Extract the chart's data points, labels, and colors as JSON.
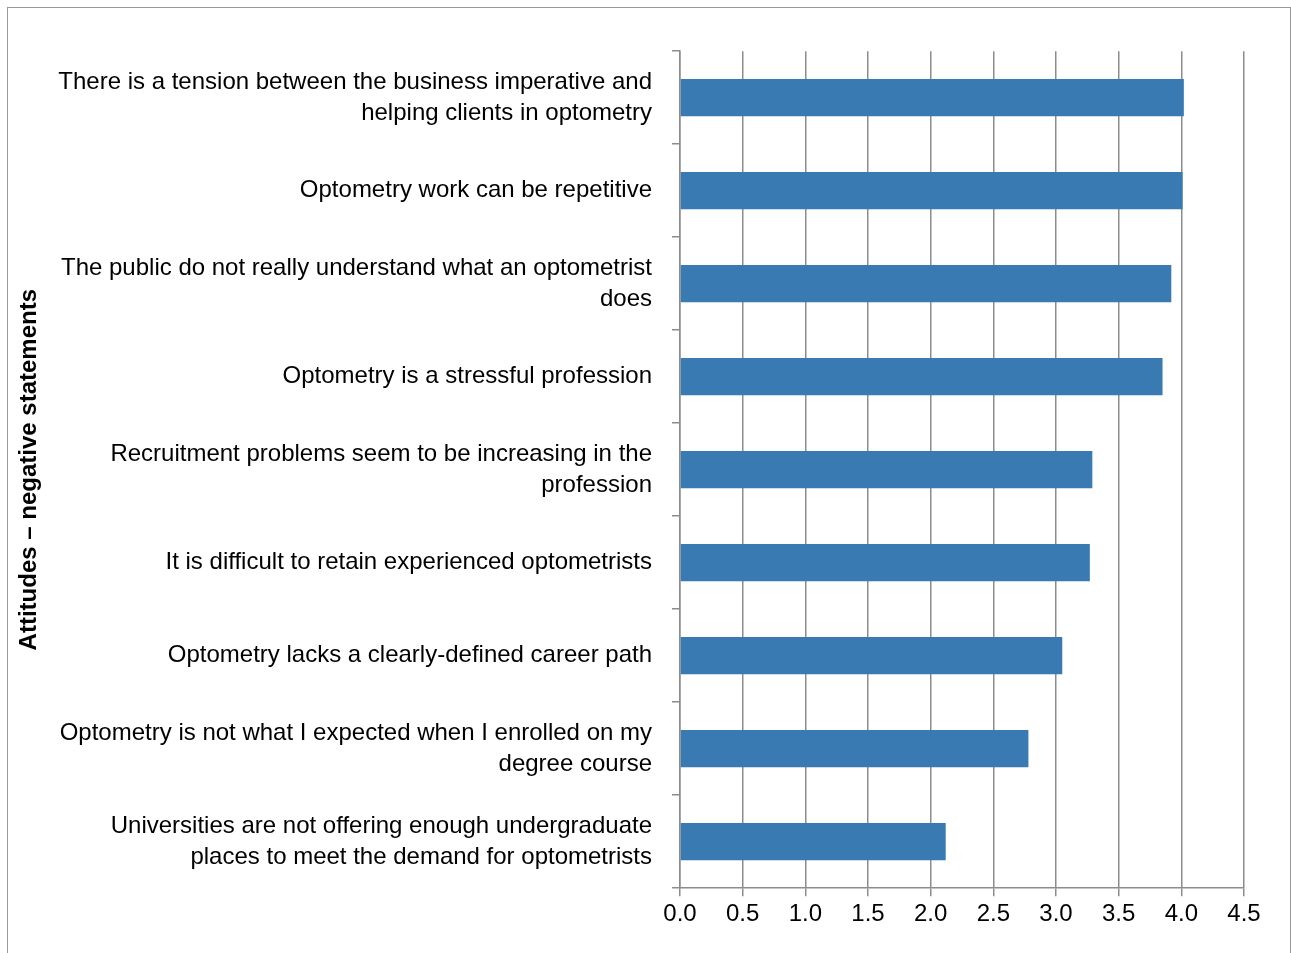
{
  "chart_data": {
    "type": "bar",
    "orientation": "horizontal",
    "ylabel": "Attitudes – negative statements",
    "categories": [
      "There is a tension between the business imperative and helping clients in optometry",
      "Optometry work can be repetitive",
      "The public do not really understand what an optometrist does",
      "Optometry is a stressful profession",
      "Recruitment problems seem to be increasing in the profession",
      "It is difficult to retain experienced optometrists",
      "Optometry lacks a clearly-defined career path",
      "Optometry is not what I expected when I enrolled on my degree course",
      "Universities are not offering enough undergraduate places to meet the demand for optometrists"
    ],
    "values": [
      4.02,
      4.01,
      3.92,
      3.85,
      3.29,
      3.27,
      3.05,
      2.78,
      2.12
    ],
    "color": "#3a7ab3",
    "xlim": [
      0,
      4.5
    ],
    "xticks": [
      {
        "value": 0,
        "label": "0.0"
      },
      {
        "value": 0.5,
        "label": "0.5"
      },
      {
        "value": 1,
        "label": "1.0"
      },
      {
        "value": 1.5,
        "label": "1.5"
      },
      {
        "value": 2,
        "label": "2.0"
      },
      {
        "value": 2.5,
        "label": "2.5"
      },
      {
        "value": 3,
        "label": "3.0"
      },
      {
        "value": 3.5,
        "label": "3.5"
      },
      {
        "value": 4,
        "label": "4.0"
      },
      {
        "value": 4.5,
        "label": "4.5"
      }
    ],
    "grid": "x",
    "legend": false
  }
}
